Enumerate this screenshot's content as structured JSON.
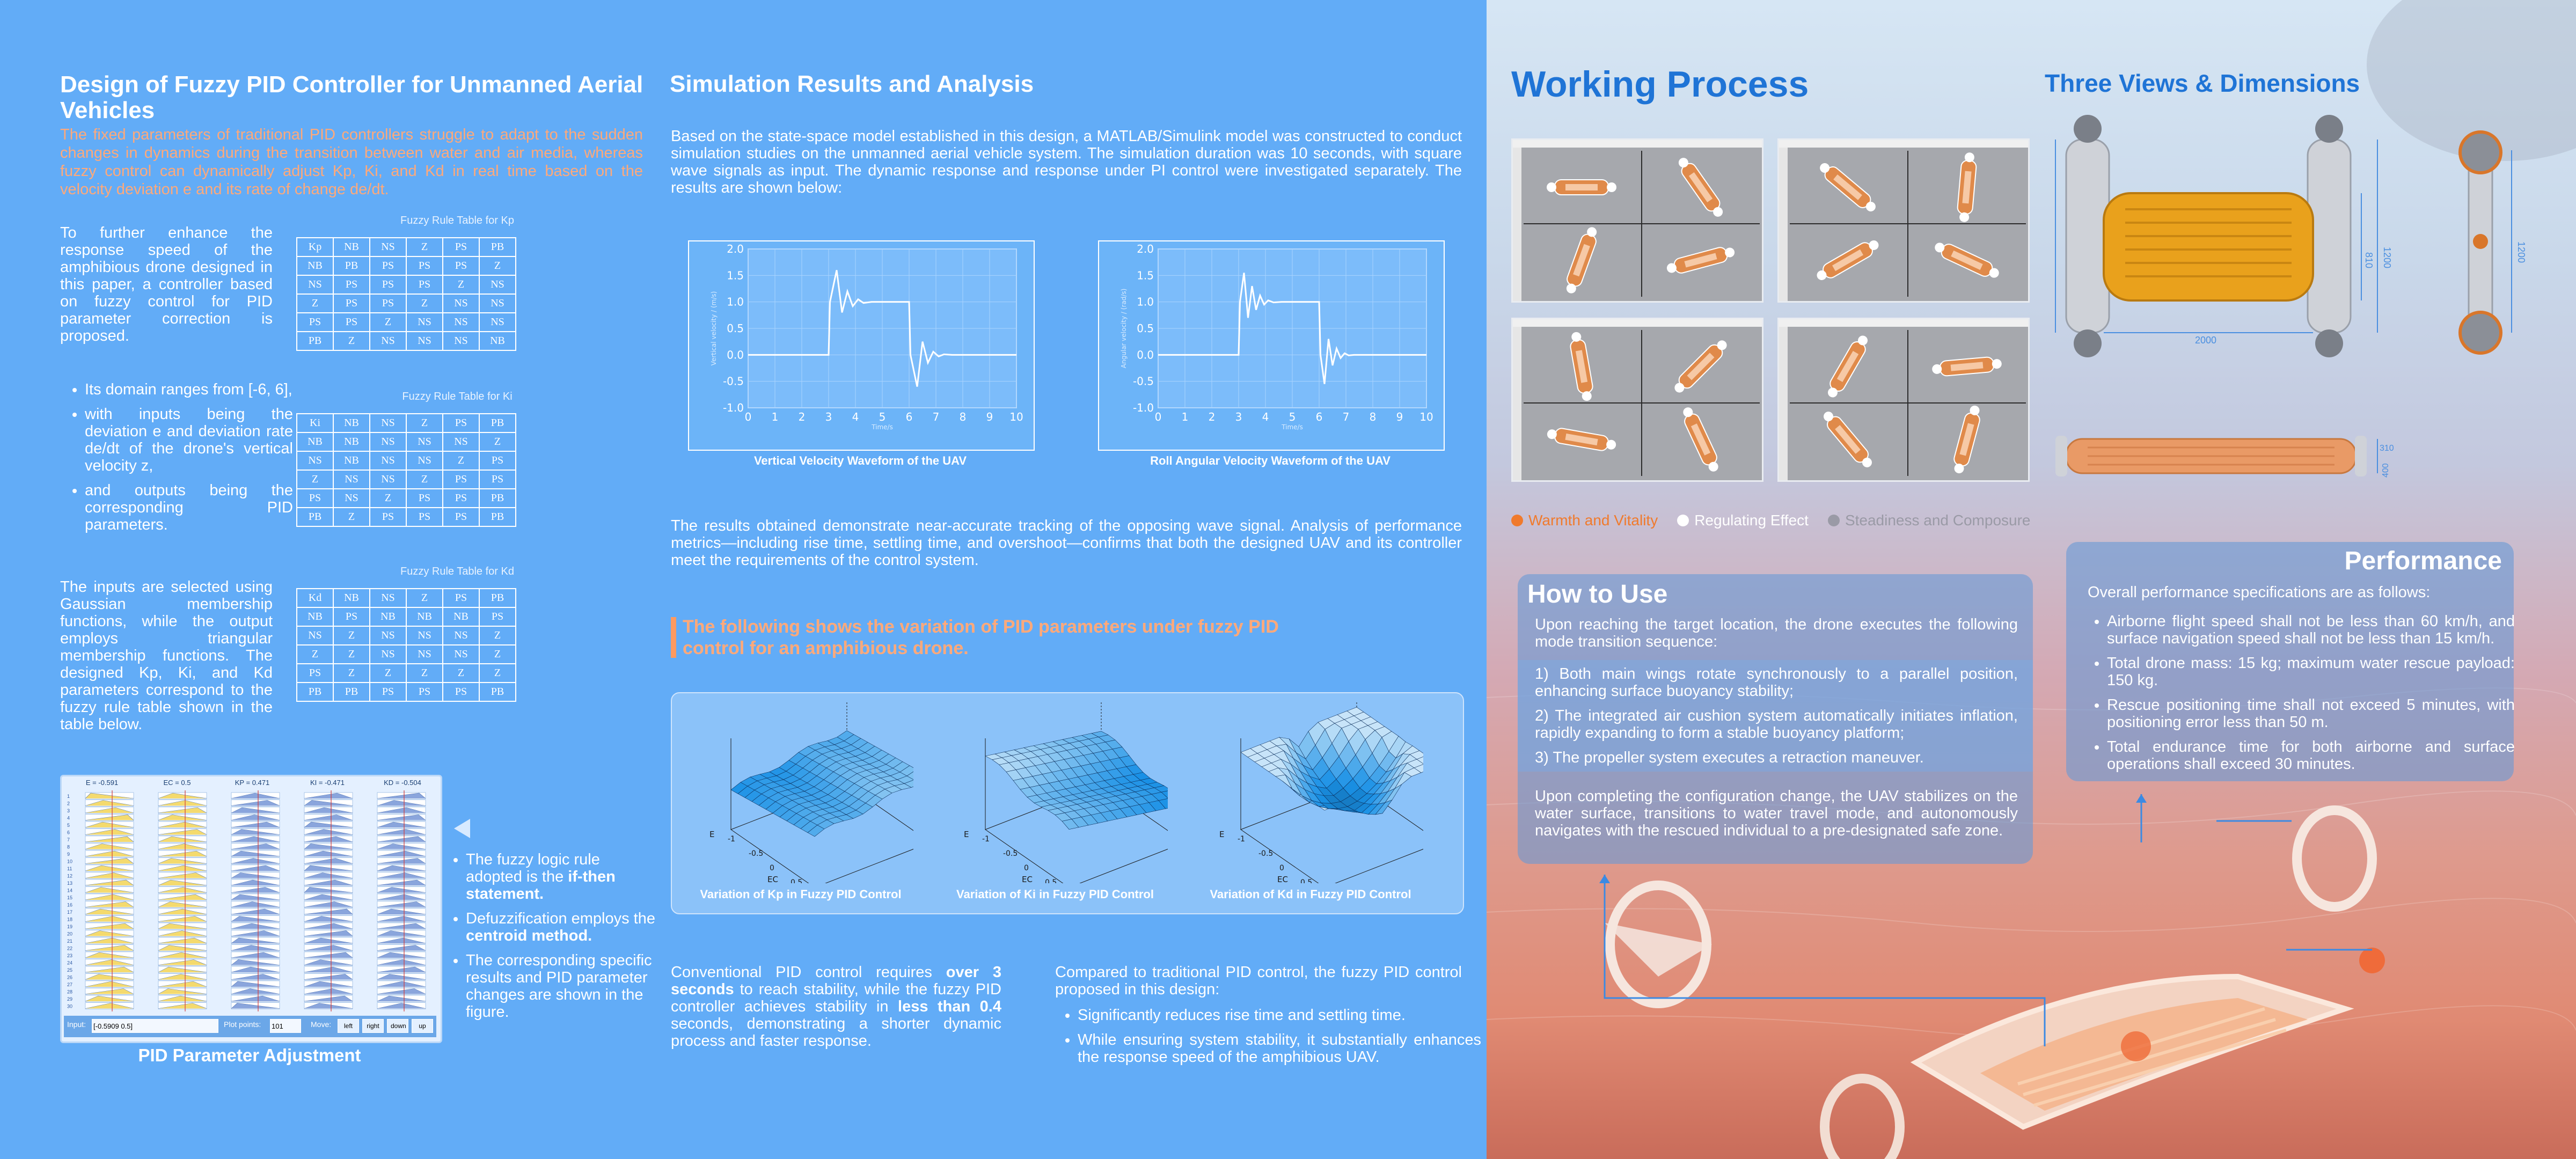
{
  "left": {
    "fuzzy_title": "Design of Fuzzy PID Controller for Unmanned Aerial Vehicles",
    "fuzzy_intro": "The fixed parameters of traditional PID controllers struggle to adapt to the sudden changes in dynamics during the transition between water and air media, whereas fuzzy control can dynamically adjust Kp, Ki, and Kd in real time based on the velocity deviation e and its rate of change de/dt.",
    "para1": "To further enhance the response speed of the amphibious drone designed in this paper, a controller based on fuzzy control for PID parameter correction is proposed.",
    "bullets1": [
      "Its domain ranges from [-6, 6],",
      "with inputs being the deviation e and deviation rate de/dt of the drone's vertical velocity z,",
      "and outputs being the corresponding PID parameters."
    ],
    "para2": "The inputs are selected using Gaussian membership functions, while the output employs triangular membership functions. The designed Kp, Ki, and Kd parameters correspond to the fuzzy rule table shown in the table below.",
    "tables": [
      {
        "caption": "Fuzzy Rule Table for Kp",
        "corner": "Kp",
        "header": [
          "NB",
          "NS",
          "Z",
          "PS",
          "PB"
        ],
        "rows": [
          [
            "NB",
            "PB",
            "PS",
            "PS",
            "PS",
            "Z"
          ],
          [
            "NS",
            "PS",
            "PS",
            "PS",
            "Z",
            "NS"
          ],
          [
            "Z",
            "PS",
            "PS",
            "Z",
            "NS",
            "NS"
          ],
          [
            "PS",
            "PS",
            "Z",
            "NS",
            "NS",
            "NS"
          ],
          [
            "PB",
            "Z",
            "NS",
            "NS",
            "NS",
            "NB"
          ]
        ]
      },
      {
        "caption": "Fuzzy Rule Table for Ki",
        "corner": "Ki",
        "header": [
          "NB",
          "NS",
          "Z",
          "PS",
          "PB"
        ],
        "rows": [
          [
            "NB",
            "NB",
            "NS",
            "NS",
            "NS",
            "Z"
          ],
          [
            "NS",
            "NB",
            "NS",
            "NS",
            "Z",
            "PS"
          ],
          [
            "Z",
            "NS",
            "NS",
            "Z",
            "PS",
            "PS"
          ],
          [
            "PS",
            "NS",
            "Z",
            "PS",
            "PS",
            "PB"
          ],
          [
            "PB",
            "Z",
            "PS",
            "PS",
            "PS",
            "PB"
          ]
        ]
      },
      {
        "caption": "Fuzzy Rule Table for Kd",
        "corner": "Kd",
        "header": [
          "NB",
          "NS",
          "Z",
          "PS",
          "PB"
        ],
        "rows": [
          [
            "NB",
            "PS",
            "NB",
            "NB",
            "NB",
            "PS"
          ],
          [
            "NS",
            "Z",
            "NS",
            "NS",
            "NS",
            "Z"
          ],
          [
            "Z",
            "Z",
            "NS",
            "NS",
            "NS",
            "Z"
          ],
          [
            "PS",
            "Z",
            "Z",
            "Z",
            "Z",
            "Z"
          ],
          [
            "PB",
            "PB",
            "PS",
            "PS",
            "PS",
            "PB"
          ]
        ]
      }
    ],
    "rule_viewer": {
      "columns": [
        "E = -0.591",
        "EC = 0.5",
        "KP = 0.471",
        "KI = -0.471",
        "KD = -0.504"
      ],
      "input_label": "Input:",
      "input_value": "[-0.5909 0.5]",
      "plot_points_label": "Plot points:",
      "plot_points_value": "101",
      "move_label": "Move:",
      "buttons": [
        "left",
        "right",
        "down",
        "up"
      ],
      "caption": "PID Parameter Adjustment"
    },
    "bullets2": [
      {
        "pre": "The fuzzy logic rule adopted is the ",
        "bold": "if-then statement.",
        "post": ""
      },
      {
        "pre": "Defuzzification employs the ",
        "bold": "centroid method.",
        "post": ""
      },
      {
        "pre": "The corresponding specific results and PID parameter changes are shown in the figure.",
        "bold": "",
        "post": ""
      }
    ],
    "sim_title": "Simulation Results and Analysis",
    "sim_intro": "Based on the state-space model established in this design, a MATLAB/Simulink model was constructed to conduct simulation studies on the unmanned aerial vehicle system. The simulation duration was 10 seconds, with square wave signals as input. The dynamic response and response under PI control were investigated separately. The results are shown below:",
    "sim_results": "The results obtained demonstrate near-accurate tracking of the opposing wave signal. Analysis of performance metrics—including rise time, settling time, and overshoot—confirms that both the designed UAV and its controller meet the requirements of the control system.",
    "pid_heading": "The following shows the variation of PID parameters under fuzzy PID control for an amphibious drone.",
    "surface_captions": [
      "Variation of Kp in Fuzzy PID Control",
      "Variation of Ki in Fuzzy PID Control",
      "Variation of Kd in Fuzzy PID Control"
    ],
    "conv": {
      "t1": "Conventional PID control requires ",
      "b1": "over 3 seconds",
      "t2": " to reach stability, while the fuzzy PID controller achieves stability in ",
      "b2": "less than 0.4",
      "t3": " seconds, demonstrating a shorter dynamic process and faster response."
    },
    "compare_intro": "Compared to traditional PID control, the fuzzy PID control proposed in this design:",
    "compare_bullets": [
      "Significantly reduces rise time and settling time.",
      "While ensuring system stability, it substantially enhances the response speed of the amphibious UAV."
    ]
  },
  "chart_data": [
    {
      "type": "line",
      "title": "Vertical Velocity Waveform of the UAV",
      "xlabel": "Time/s",
      "ylabel": "Vertical velocity / (m/s)",
      "xlim": [
        0,
        10
      ],
      "ylim": [
        -1.0,
        2.0
      ],
      "xticks": [
        0,
        1,
        2,
        3,
        4,
        5,
        6,
        7,
        8,
        9,
        10
      ],
      "yticks": [
        -1.0,
        -0.5,
        0,
        0.5,
        1.0,
        1.5,
        2.0
      ],
      "grid": true,
      "series": [
        {
          "x": [
            0,
            3.0,
            3.05,
            3.3,
            3.5,
            3.7,
            3.9,
            4.1,
            4.3,
            4.6,
            5,
            5.5,
            6.0,
            6.05,
            6.3,
            6.5,
            6.7,
            6.9,
            7.1,
            7.3,
            7.6,
            8,
            9,
            10
          ],
          "y": [
            0,
            0,
            1.0,
            1.6,
            0.8,
            1.2,
            0.92,
            1.05,
            0.98,
            1.0,
            1.0,
            1.0,
            1.0,
            0,
            -0.6,
            0.25,
            -0.15,
            0.06,
            -0.03,
            0.01,
            0,
            0,
            0,
            0
          ]
        }
      ]
    },
    {
      "type": "line",
      "title": "Roll Angular Velocity Waveform of the UAV",
      "xlabel": "Time/s",
      "ylabel": "Angular velocity / (rad/s)",
      "xlim": [
        0,
        10
      ],
      "ylim": [
        -1.0,
        2.0
      ],
      "xticks": [
        0,
        1,
        2,
        3,
        4,
        5,
        6,
        7,
        8,
        9,
        10
      ],
      "yticks": [
        -1.0,
        -0.5,
        0,
        0.5,
        1.0,
        1.5,
        2.0
      ],
      "grid": true,
      "series": [
        {
          "x": [
            0,
            3.0,
            3.05,
            3.2,
            3.35,
            3.5,
            3.65,
            3.8,
            3.95,
            4.1,
            4.3,
            4.6,
            5,
            6.0,
            6.05,
            6.2,
            6.35,
            6.5,
            6.65,
            6.8,
            6.95,
            7.1,
            7.3,
            7.6,
            8,
            9,
            10
          ],
          "y": [
            0,
            0,
            1.0,
            1.55,
            0.7,
            1.3,
            0.85,
            1.12,
            0.95,
            1.03,
            0.99,
            1.0,
            1.0,
            1.0,
            0,
            -0.55,
            0.3,
            -0.2,
            0.12,
            -0.06,
            0.03,
            -0.01,
            0,
            0,
            0,
            0,
            0
          ]
        }
      ]
    }
  ],
  "right": {
    "working_title": "Working Process",
    "views_title": "Three Views & Dimensions",
    "dims": [
      "2000",
      "1200",
      "810",
      "1200",
      "310",
      "400",
      "180"
    ],
    "legend": [
      {
        "label": "Warmth and Vitality",
        "color": "#f07a2c"
      },
      {
        "label": "Regulating Effect",
        "color": "#ffffff"
      },
      {
        "label": "Steadiness and Composure",
        "color": "#9a9aa6"
      }
    ],
    "howto": {
      "title": "How to Use",
      "intro": "Upon reaching the target location, the drone executes the following mode transition sequence:",
      "steps": [
        "1) Both main wings rotate synchronously to a parallel position, enhancing surface buoyancy stability;",
        "2) The integrated air cushion system automatically initiates inflation, rapidly expanding to form a stable buoyancy platform;",
        "3) The propeller system executes a retraction maneuver."
      ],
      "outro": "Upon completing the configuration change, the UAV stabilizes on the water surface, transitions to water travel mode, and autonomously navigates with the rescued individual to a pre-designated safe zone."
    },
    "performance": {
      "title": "Performance",
      "intro": "Overall performance specifications are as follows:",
      "items": [
        "Airborne flight speed shall not be less than 60 km/h, and surface navigation speed shall not be less than 15 km/h.",
        "Total drone mass: 15 kg; maximum water rescue payload: 150 kg.",
        "Rescue positioning time shall not exceed 5 minutes, with positioning error less than 50 m.",
        "Total endurance time for both airborne and surface operations shall exceed 30 minutes."
      ]
    }
  }
}
